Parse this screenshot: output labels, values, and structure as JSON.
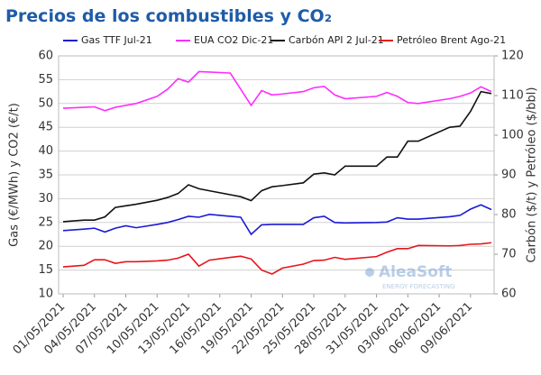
{
  "chart_data": {
    "type": "line",
    "title": "Precios de los combustibles y CO₂",
    "y_label": "Gas (€/MWh) y CO2 (€/t)",
    "y2_label": "Carbón ($/t) y Petróleo ($/bbl)",
    "watermark": {
      "name": "AleaSoft",
      "tagline": "ENERGY FORECASTING"
    },
    "x": [
      "01/05/2021",
      "03/05/2021",
      "04/05/2021",
      "05/05/2021",
      "06/05/2021",
      "07/05/2021",
      "08/05/2021",
      "10/05/2021",
      "11/05/2021",
      "12/05/2021",
      "13/05/2021",
      "14/05/2021",
      "15/05/2021",
      "17/05/2021",
      "18/05/2021",
      "19/05/2021",
      "20/05/2021",
      "21/05/2021",
      "22/05/2021",
      "24/05/2021",
      "25/05/2021",
      "26/05/2021",
      "27/05/2021",
      "28/05/2021",
      "31/05/2021",
      "01/06/2021",
      "02/06/2021",
      "03/06/2021",
      "04/06/2021",
      "07/06/2021",
      "08/06/2021",
      "09/06/2021",
      "10/06/2021",
      "11/06/2021"
    ],
    "xlim": [
      "01/05/2021",
      "11/06/2021"
    ],
    "xticks": [
      "01/05/2021",
      "04/05/2021",
      "07/05/2021",
      "10/05/2021",
      "13/05/2021",
      "16/05/2021",
      "19/05/2021",
      "22/05/2021",
      "25/05/2021",
      "28/05/2021",
      "31/05/2021",
      "03/06/2021",
      "06/06/2021",
      "09/06/2021"
    ],
    "ylim": [
      10,
      60
    ],
    "yticks": [
      10,
      15,
      20,
      25,
      30,
      35,
      40,
      45,
      50,
      55,
      60
    ],
    "y2lim": [
      60,
      120
    ],
    "y2ticks": [
      60,
      70,
      80,
      90,
      100,
      110,
      120
    ],
    "grid": true,
    "series": [
      {
        "name": "Gas TTF Jul-21",
        "color": "#1a1ad6",
        "values": [
          23.3,
          23.6,
          23.8,
          23.0,
          23.8,
          24.3,
          23.9,
          24.6,
          25.0,
          25.6,
          26.3,
          26.1,
          26.7,
          26.3,
          26.1,
          22.5,
          24.5,
          24.6,
          24.6,
          24.6,
          26.0,
          26.3,
          25.0,
          24.9,
          25.0,
          25.1,
          26.0,
          25.7,
          25.7,
          26.2,
          26.5,
          27.8,
          28.7,
          27.7
        ]
      },
      {
        "name": "EUA CO2 Dic-21",
        "color": "#ff2cff",
        "values": [
          49.0,
          49.2,
          49.3,
          48.5,
          49.2,
          49.6,
          50.0,
          51.5,
          53.0,
          55.2,
          54.5,
          56.7,
          56.6,
          56.4,
          53.0,
          49.6,
          52.7,
          51.8,
          52.0,
          52.5,
          53.3,
          53.6,
          51.8,
          51.0,
          51.5,
          52.3,
          51.5,
          50.2,
          50.0,
          51.0,
          51.5,
          52.2,
          53.5,
          52.5
        ]
      },
      {
        "name": "Carbón API 2 Jul-21",
        "color": "#111111",
        "axis": "y2",
        "values": [
          78.2,
          78.6,
          78.6,
          79.4,
          81.8,
          82.2,
          82.6,
          83.6,
          84.3,
          85.3,
          87.5,
          86.5,
          86.0,
          85.0,
          84.5,
          83.5,
          86.0,
          87.0,
          87.3,
          88.0,
          90.2,
          90.5,
          90.0,
          92.2,
          92.2,
          94.5,
          94.5,
          98.5,
          98.5,
          102.0,
          102.3,
          106.0,
          111.0,
          110.5
        ]
      },
      {
        "name": "Petróleo Brent Ago-21",
        "color": "#e8141c",
        "axis": "y2",
        "values": [
          66.8,
          67.2,
          68.6,
          68.6,
          67.7,
          68.1,
          68.1,
          68.3,
          68.5,
          69.0,
          70.0,
          67.0,
          68.5,
          69.2,
          69.5,
          68.8,
          66.0,
          65.0,
          66.5,
          67.5,
          68.4,
          68.5,
          69.2,
          68.7,
          69.4,
          70.5,
          71.4,
          71.4,
          72.2,
          72.1,
          72.2,
          72.5,
          72.6,
          72.9
        ]
      }
    ]
  }
}
